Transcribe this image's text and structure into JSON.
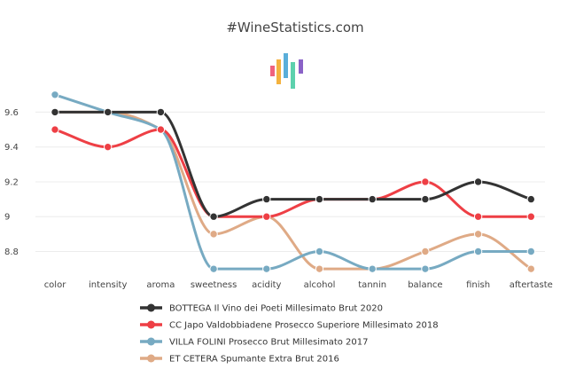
{
  "chart_data": {
    "type": "line",
    "title": "#WineStatistics.com",
    "categories": [
      "color",
      "intensity",
      "aroma",
      "sweetness",
      "acidity",
      "alcohol",
      "tannin",
      "balance",
      "finish",
      "aftertaste"
    ],
    "ylim": [
      8.66,
      9.76
    ],
    "yticks": [
      8.8,
      9,
      9.2,
      9.4,
      9.6
    ],
    "ytick_labels": [
      "8.8",
      "9",
      "9.2",
      "9.4",
      "9.6"
    ],
    "grid": true,
    "legend_position": "bottom",
    "series": [
      {
        "name": "BOTTEGA Il Vino dei Poeti Millesimato Brut 2020",
        "color": "#333333",
        "values": [
          9.6,
          9.6,
          9.6,
          9.0,
          9.1,
          9.1,
          9.1,
          9.1,
          9.2,
          9.1
        ]
      },
      {
        "name": "CC Japo Valdobbiadene Prosecco Superiore Millesimato 2018",
        "color": "#ee3f45",
        "values": [
          9.5,
          9.4,
          9.5,
          9.0,
          9.0,
          9.1,
          9.1,
          9.2,
          9.0,
          9.0
        ]
      },
      {
        "name": "VILLA FOLINI Prosecco Brut Millesimato 2017",
        "color": "#77aac2",
        "values": [
          9.7,
          9.6,
          9.5,
          8.7,
          8.7,
          8.8,
          8.7,
          8.7,
          8.8,
          8.8
        ]
      },
      {
        "name": "ET CETERA Spumante Extra Brut 2016",
        "color": "#dfaa86",
        "values": [
          9.6,
          9.6,
          9.5,
          8.9,
          9.0,
          8.7,
          8.7,
          8.8,
          8.9,
          8.7
        ]
      }
    ],
    "logo_colors": [
      "#f0627e",
      "#f4b23e",
      "#5aaed9",
      "#5dd1ad",
      "#8a62c7"
    ]
  }
}
